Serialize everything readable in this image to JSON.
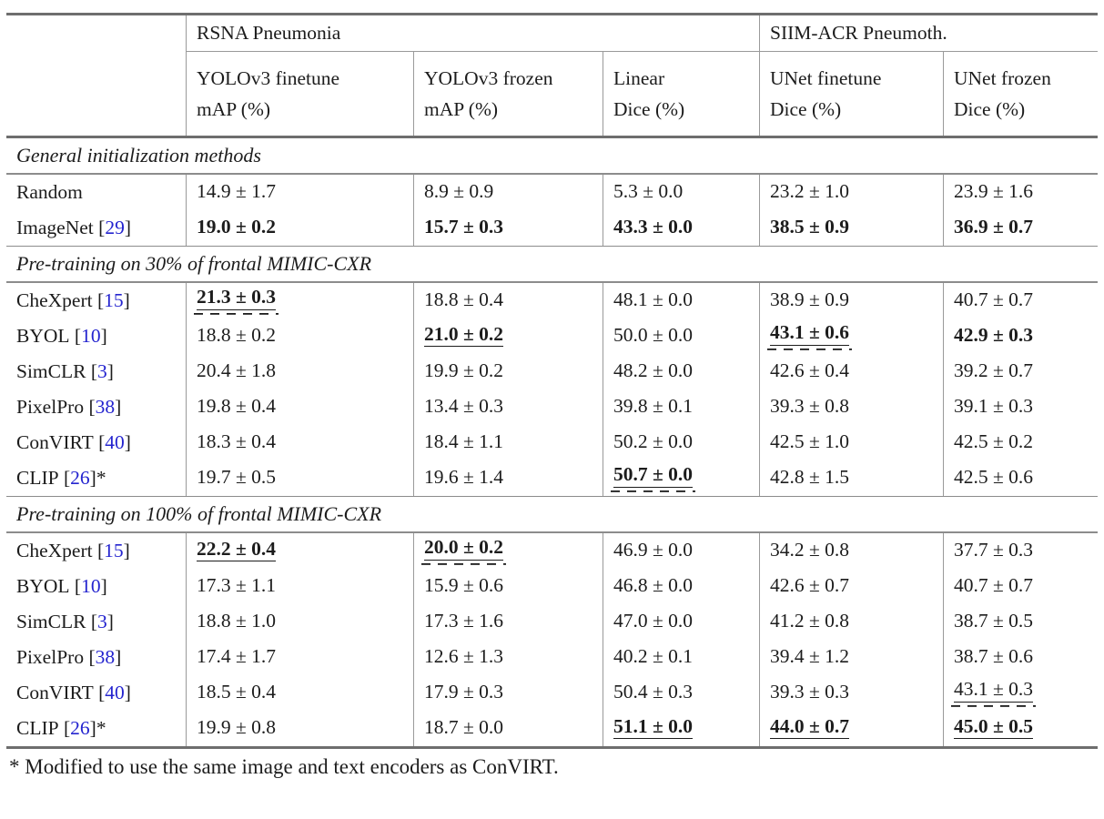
{
  "header": {
    "groups": {
      "rsna": "RSNA Pneumonia",
      "siim": "SIIM-ACR Pneumoth."
    },
    "columns": [
      {
        "model": "YOLOv3 finetune",
        "metric": "mAP (%)"
      },
      {
        "model": "YOLOv3 frozen",
        "metric": "mAP (%)"
      },
      {
        "model": "Linear",
        "metric": "Dice (%)"
      },
      {
        "model": "UNet finetune",
        "metric": "Dice (%)"
      },
      {
        "model": "UNet frozen",
        "metric": "Dice (%)"
      }
    ]
  },
  "sections": [
    {
      "title": "General initialization methods",
      "rows": [
        {
          "method": "Random",
          "cite": null,
          "star": false,
          "values": [
            {
              "text": "14.9 ± 1.7"
            },
            {
              "text": "8.9 ± 0.9"
            },
            {
              "text": "5.3 ± 0.0"
            },
            {
              "text": "23.2 ± 1.0"
            },
            {
              "text": "23.9 ± 1.6"
            }
          ]
        },
        {
          "method": "ImageNet",
          "cite": "29",
          "star": false,
          "values": [
            {
              "text": "19.0 ± 0.2",
              "bold": true
            },
            {
              "text": "15.7 ± 0.3",
              "bold": true
            },
            {
              "text": "43.3 ± 0.0",
              "bold": true
            },
            {
              "text": "38.5 ± 0.9",
              "bold": true
            },
            {
              "text": "36.9 ± 0.7",
              "bold": true
            }
          ]
        }
      ]
    },
    {
      "title": "Pre-training on 30% of frontal MIMIC-CXR",
      "rows": [
        {
          "method": "CheXpert",
          "cite": "15",
          "star": false,
          "values": [
            {
              "text": "21.3 ± 0.3",
              "bold": true,
              "underline": "solid-dashed"
            },
            {
              "text": "18.8 ± 0.4"
            },
            {
              "text": "48.1 ± 0.0"
            },
            {
              "text": "38.9 ± 0.9"
            },
            {
              "text": "40.7 ± 0.7"
            }
          ]
        },
        {
          "method": "BYOL",
          "cite": "10",
          "star": false,
          "values": [
            {
              "text": "18.8 ± 0.2"
            },
            {
              "text": "21.0 ± 0.2",
              "bold": true,
              "underline": "solid"
            },
            {
              "text": "50.0 ± 0.0"
            },
            {
              "text": "43.1 ± 0.6",
              "bold": true,
              "underline": "solid-dashed"
            },
            {
              "text": "42.9 ± 0.3",
              "bold": true
            }
          ]
        },
        {
          "method": "SimCLR",
          "cite": "3",
          "star": false,
          "values": [
            {
              "text": "20.4 ± 1.8"
            },
            {
              "text": "19.9 ± 0.2"
            },
            {
              "text": "48.2 ± 0.0"
            },
            {
              "text": "42.6 ± 0.4"
            },
            {
              "text": "39.2 ± 0.7"
            }
          ]
        },
        {
          "method": "PixelPro",
          "cite": "38",
          "star": false,
          "values": [
            {
              "text": "19.8 ± 0.4"
            },
            {
              "text": "13.4 ± 0.3"
            },
            {
              "text": "39.8 ± 0.1"
            },
            {
              "text": "39.3 ± 0.8"
            },
            {
              "text": "39.1 ± 0.3"
            }
          ]
        },
        {
          "method": "ConVIRT",
          "cite": "40",
          "star": false,
          "values": [
            {
              "text": "18.3 ± 0.4"
            },
            {
              "text": "18.4 ± 1.1"
            },
            {
              "text": "50.2 ± 0.0"
            },
            {
              "text": "42.5 ± 1.0"
            },
            {
              "text": "42.5 ± 0.2"
            }
          ]
        },
        {
          "method": "CLIP",
          "cite": "26",
          "star": true,
          "values": [
            {
              "text": "19.7 ± 0.5"
            },
            {
              "text": "19.6 ± 1.4"
            },
            {
              "text": "50.7 ± 0.0",
              "bold": true,
              "underline": "solid-dashed"
            },
            {
              "text": "42.8 ± 1.5"
            },
            {
              "text": "42.5 ± 0.6"
            }
          ]
        }
      ]
    },
    {
      "title": "Pre-training on 100% of frontal MIMIC-CXR",
      "rows": [
        {
          "method": "CheXpert",
          "cite": "15",
          "star": false,
          "values": [
            {
              "text": "22.2 ± 0.4",
              "bold": true,
              "underline": "solid"
            },
            {
              "text": "20.0 ± 0.2",
              "bold": true,
              "underline": "solid-dashed"
            },
            {
              "text": "46.9 ± 0.0"
            },
            {
              "text": "34.2 ± 0.8"
            },
            {
              "text": "37.7 ± 0.3"
            }
          ]
        },
        {
          "method": "BYOL",
          "cite": "10",
          "star": false,
          "values": [
            {
              "text": "17.3 ± 1.1"
            },
            {
              "text": "15.9 ± 0.6"
            },
            {
              "text": "46.8 ± 0.0"
            },
            {
              "text": "42.6 ± 0.7"
            },
            {
              "text": "40.7 ± 0.7"
            }
          ]
        },
        {
          "method": "SimCLR",
          "cite": "3",
          "star": false,
          "values": [
            {
              "text": "18.8 ± 1.0"
            },
            {
              "text": "17.3 ± 1.6"
            },
            {
              "text": "47.0 ± 0.0"
            },
            {
              "text": "41.2 ± 0.8"
            },
            {
              "text": "38.7 ± 0.5"
            }
          ]
        },
        {
          "method": "PixelPro",
          "cite": "38",
          "star": false,
          "values": [
            {
              "text": "17.4 ± 1.7"
            },
            {
              "text": "12.6 ± 1.3"
            },
            {
              "text": "40.2 ± 0.1"
            },
            {
              "text": "39.4 ± 1.2"
            },
            {
              "text": "38.7 ± 0.6"
            }
          ]
        },
        {
          "method": "ConVIRT",
          "cite": "40",
          "star": false,
          "values": [
            {
              "text": "18.5 ± 0.4"
            },
            {
              "text": "17.9 ± 0.3"
            },
            {
              "text": "50.4 ± 0.3"
            },
            {
              "text": "39.3 ± 0.3"
            },
            {
              "text": "43.1 ± 0.3",
              "underline": "solid-dashed"
            }
          ]
        },
        {
          "method": "CLIP",
          "cite": "26",
          "star": true,
          "values": [
            {
              "text": "19.9 ± 0.8"
            },
            {
              "text": "18.7 ± 0.0"
            },
            {
              "text": "51.1 ± 0.0",
              "bold": true,
              "underline": "solid"
            },
            {
              "text": "44.0 ± 0.7",
              "bold": true,
              "underline": "solid"
            },
            {
              "text": "45.0 ± 0.5",
              "bold": true,
              "underline": "solid"
            }
          ]
        }
      ]
    }
  ],
  "footnote": "* Modified to use the same image and text encoders as ConVIRT.",
  "colors": {
    "link": "#2424cf",
    "rule_heavy": "#6e6e6e",
    "rule_light": "#8c8c8c"
  }
}
